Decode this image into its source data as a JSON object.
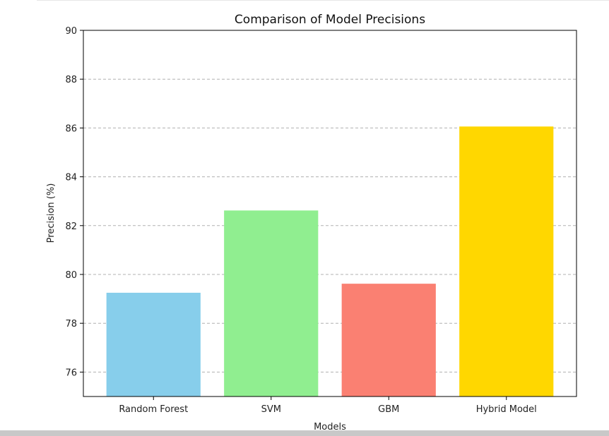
{
  "chart_data": {
    "type": "bar",
    "title": "Comparison of Model Precisions",
    "xlabel": "Models",
    "ylabel": "Precision (%)",
    "categories": [
      "Random Forest",
      "SVM",
      "GBM",
      "Hybrid Model"
    ],
    "values": [
      79.25,
      82.62,
      79.62,
      86.06
    ],
    "colors": [
      "#87ceeb",
      "#90ee90",
      "#fa8072",
      "#ffd700"
    ],
    "ylim": [
      75,
      90
    ],
    "yticks": [
      76,
      78,
      80,
      82,
      84,
      86,
      88,
      90
    ],
    "grid": "y-dashed",
    "legend": "none"
  }
}
